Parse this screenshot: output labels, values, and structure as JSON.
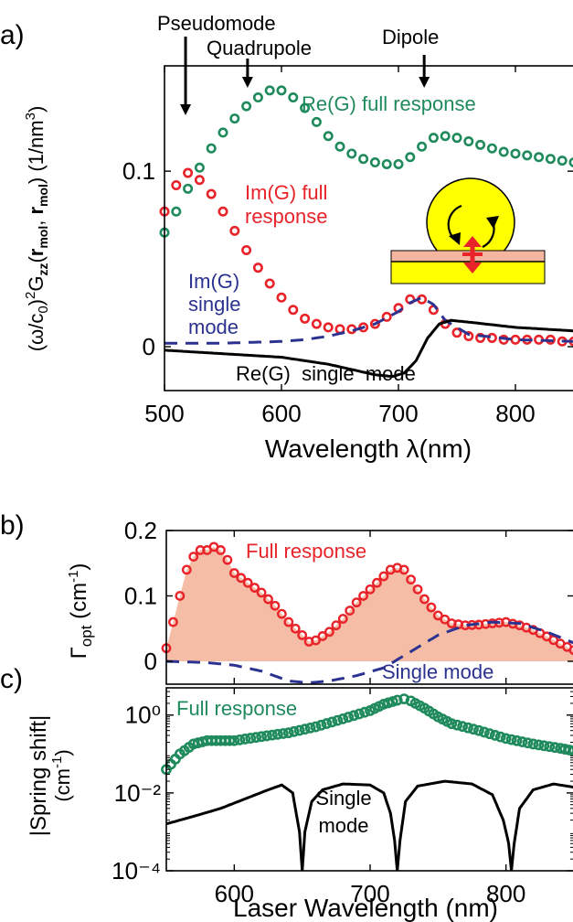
{
  "colors": {
    "green": "#1f8a5b",
    "red": "#e8232a",
    "navy": "#2b3290",
    "black": "#000000",
    "fill": "#f6bda6",
    "yellow": "#ffff00",
    "substrate_stripe": "#f4b6a0"
  },
  "chart_data": [
    {
      "id": "a",
      "panel_label": "a)",
      "type": "scatter",
      "xlabel": "Wavelength λ(nm)",
      "ylabel": "(ω/c₀)²G_zz(r_mol, r_mol) (1/nm³)",
      "xlim": [
        500,
        850
      ],
      "ylim": [
        -0.025,
        0.16
      ],
      "xticks": [
        500,
        600,
        700,
        800
      ],
      "yticks": [
        0,
        0.1
      ],
      "ytick_labels": [
        "0",
        "0.1"
      ],
      "annotations": [
        "Pseudomode",
        "Quadrupole",
        "Dipole",
        "Re(G) full response",
        "Im(G) full response",
        "Im(G) single mode",
        "Re(G)  single  mode"
      ],
      "annotation_arrows_nm": [
        {
          "label": "Pseudomode",
          "x": 518
        },
        {
          "label": "Quadrupole",
          "x": 571
        },
        {
          "label": "Dipole",
          "x": 722
        }
      ],
      "series": [
        {
          "name": "Re(G) full response",
          "style": "markers",
          "x": [
            500,
            510,
            520,
            530,
            540,
            550,
            560,
            570,
            580,
            590,
            600,
            610,
            620,
            630,
            640,
            650,
            660,
            670,
            680,
            690,
            700,
            710,
            720,
            730,
            740,
            750,
            760,
            770,
            780,
            790,
            800,
            810,
            820,
            830,
            840,
            850
          ],
          "y": [
            0.065,
            0.077,
            0.09,
            0.102,
            0.113,
            0.122,
            0.13,
            0.137,
            0.142,
            0.146,
            0.146,
            0.142,
            0.136,
            0.128,
            0.12,
            0.114,
            0.11,
            0.107,
            0.105,
            0.104,
            0.104,
            0.108,
            0.114,
            0.119,
            0.12,
            0.119,
            0.117,
            0.115,
            0.113,
            0.111,
            0.11,
            0.109,
            0.108,
            0.107,
            0.106,
            0.105
          ]
        },
        {
          "name": "Im(G) full response",
          "style": "markers",
          "x": [
            500,
            510,
            520,
            530,
            540,
            550,
            560,
            570,
            580,
            590,
            600,
            610,
            620,
            630,
            640,
            650,
            660,
            670,
            680,
            690,
            700,
            710,
            720,
            730,
            740,
            750,
            760,
            770,
            780,
            790,
            800,
            810,
            820,
            830,
            840,
            850
          ],
          "y": [
            0.077,
            0.092,
            0.099,
            0.095,
            0.087,
            0.077,
            0.066,
            0.055,
            0.045,
            0.036,
            0.028,
            0.021,
            0.016,
            0.013,
            0.011,
            0.01,
            0.01,
            0.011,
            0.013,
            0.017,
            0.022,
            0.027,
            0.027,
            0.021,
            0.013,
            0.008,
            0.006,
            0.005,
            0.005,
            0.004,
            0.004,
            0.004,
            0.004,
            0.004,
            0.003,
            0.003
          ]
        },
        {
          "name": "Im(G) single mode",
          "style": "dashed",
          "x": [
            500,
            550,
            600,
            620,
            640,
            660,
            680,
            700,
            710,
            720,
            730,
            740,
            760,
            800,
            850
          ],
          "y": [
            0.002,
            0.002,
            0.003,
            0.004,
            0.006,
            0.009,
            0.013,
            0.02,
            0.025,
            0.028,
            0.024,
            0.015,
            0.007,
            0.004,
            0.003
          ]
        },
        {
          "name": "Re(G)  single  mode",
          "style": "solid",
          "x": [
            500,
            550,
            600,
            640,
            660,
            680,
            695,
            705,
            715,
            725,
            735,
            745,
            760,
            800,
            850
          ],
          "y": [
            -0.002,
            -0.004,
            -0.006,
            -0.01,
            -0.013,
            -0.016,
            -0.017,
            -0.015,
            -0.008,
            0.005,
            0.013,
            0.015,
            0.014,
            0.011,
            0.009
          ]
        }
      ]
    },
    {
      "id": "b",
      "panel_label": "b)",
      "type": "area",
      "ylabel": "Γopt (cm⁻¹)",
      "xlim": [
        550,
        850
      ],
      "ylim": [
        -0.035,
        0.2
      ],
      "xticks": [
        600,
        700,
        800
      ],
      "yticks": [
        0,
        0.1,
        0.2
      ],
      "ytick_labels": [
        "0",
        "0.1",
        "0.2"
      ],
      "annotations": [
        "Full response",
        "Single mode"
      ],
      "series": [
        {
          "name": "Full response",
          "style": "markers+fill",
          "x": [
            550,
            555,
            560,
            565,
            570,
            575,
            580,
            585,
            590,
            595,
            600,
            610,
            620,
            630,
            640,
            650,
            655,
            660,
            670,
            680,
            690,
            700,
            710,
            715,
            720,
            725,
            730,
            740,
            750,
            760,
            770,
            780,
            790,
            800,
            810,
            820,
            830,
            840,
            850
          ],
          "y": [
            0.02,
            0.06,
            0.1,
            0.14,
            0.16,
            0.17,
            0.17,
            0.175,
            0.17,
            0.155,
            0.135,
            0.12,
            0.105,
            0.085,
            0.06,
            0.04,
            0.03,
            0.032,
            0.045,
            0.065,
            0.09,
            0.11,
            0.13,
            0.14,
            0.143,
            0.14,
            0.125,
            0.095,
            0.07,
            0.058,
            0.055,
            0.056,
            0.058,
            0.06,
            0.055,
            0.048,
            0.038,
            0.027,
            0.017
          ]
        },
        {
          "name": "Single mode",
          "style": "dashed",
          "x": [
            550,
            580,
            600,
            620,
            640,
            655,
            670,
            690,
            710,
            730,
            750,
            770,
            790,
            810,
            830,
            850
          ],
          "y": [
            0,
            -0.002,
            -0.006,
            -0.015,
            -0.03,
            -0.033,
            -0.03,
            -0.022,
            -0.01,
            0.015,
            0.04,
            0.055,
            0.06,
            0.058,
            0.045,
            0.028
          ]
        }
      ]
    },
    {
      "id": "c",
      "panel_label": "c)",
      "type": "scatter",
      "xlabel": "Laser Wavelength (nm)",
      "ylabel": "|Spring shift| (cm⁻¹)",
      "yscale": "log",
      "xlim": [
        550,
        850
      ],
      "ylim": [
        0.0001,
        5
      ],
      "xticks": [
        600,
        700,
        800
      ],
      "yticks": [
        0.0001,
        0.01,
        1
      ],
      "ytick_labels": [
        "10⁻⁴",
        "10⁻²",
        "10⁰"
      ],
      "annotations": [
        "Full response",
        "Single mode"
      ],
      "series": [
        {
          "name": "Full response",
          "style": "markers",
          "x": [
            550,
            560,
            570,
            580,
            590,
            600,
            620,
            640,
            660,
            680,
            700,
            710,
            720,
            725,
            730,
            740,
            750,
            760,
            780,
            800,
            820,
            840,
            850
          ],
          "y": [
            0.04,
            0.1,
            0.18,
            0.22,
            0.22,
            0.22,
            0.28,
            0.35,
            0.5,
            0.8,
            1.3,
            1.9,
            2.4,
            2.6,
            2.3,
            1.5,
            0.9,
            0.6,
            0.4,
            0.25,
            0.18,
            0.14,
            0.12
          ]
        },
        {
          "name": "Single mode",
          "style": "solid",
          "segments": [
            {
              "x": [
                550,
                570,
                590,
                610,
                625,
                635,
                643,
                648,
                650
              ],
              "y": [
                0.0016,
                0.0025,
                0.004,
                0.0075,
                0.012,
                0.016,
                0.01,
                0.001,
                0.0001
              ]
            },
            {
              "x": [
                650,
                652,
                657,
                665,
                680,
                700,
                710,
                715,
                718,
                720
              ],
              "y": [
                0.0001,
                0.001,
                0.006,
                0.012,
                0.017,
                0.016,
                0.01,
                0.003,
                0.0006,
                0.0001
              ]
            },
            {
              "x": [
                720,
                722,
                726,
                735,
                755,
                775,
                790,
                798,
                802,
                804
              ],
              "y": [
                0.0001,
                0.0006,
                0.006,
                0.015,
                0.02,
                0.017,
                0.009,
                0.002,
                0.0005,
                0.0001
              ]
            },
            {
              "x": [
                804,
                806,
                810,
                820,
                835,
                850
              ],
              "y": [
                0.0001,
                0.0005,
                0.004,
                0.012,
                0.017,
                0.014
              ]
            }
          ]
        }
      ]
    }
  ]
}
